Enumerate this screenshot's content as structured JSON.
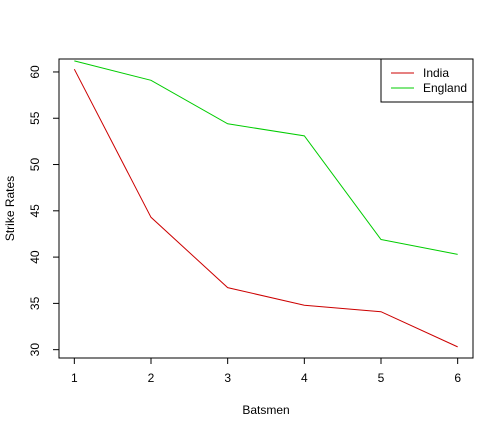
{
  "chart_data": {
    "type": "line",
    "title": "",
    "xlabel": "Batsmen",
    "ylabel": "Strike Rates",
    "x": [
      1,
      2,
      3,
      4,
      5,
      6
    ],
    "xlim": [
      0.8,
      6.2
    ],
    "ylim": [
      29.1,
      61.4
    ],
    "xticks": [
      1,
      2,
      3,
      4,
      5,
      6
    ],
    "yticks": [
      30,
      35,
      40,
      45,
      50,
      55,
      60
    ],
    "grid": false,
    "legend_position": "top-right",
    "series": [
      {
        "name": "India",
        "color": "#cc0000",
        "values": [
          60.3,
          44.3,
          36.7,
          34.8,
          34.1,
          30.3
        ]
      },
      {
        "name": "England",
        "color": "#00cc00",
        "values": [
          61.2,
          59.1,
          54.4,
          53.1,
          41.9,
          40.3
        ]
      }
    ]
  }
}
